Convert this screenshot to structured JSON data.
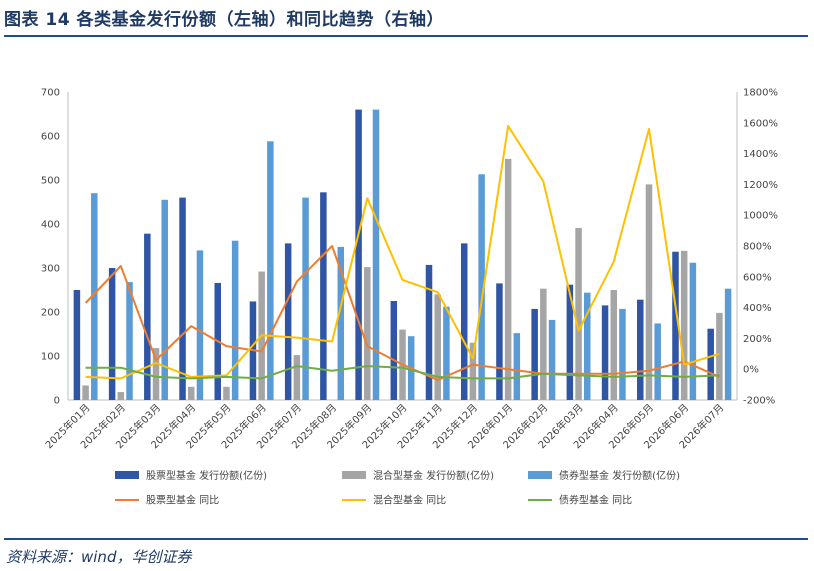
{
  "header": {
    "title": "图表 14   各类基金发行份额（左轴）和同比趋势（右轴）"
  },
  "footer": {
    "source": "资料来源：wind，华创证券"
  },
  "chart_data": {
    "type": "bar",
    "categories": [
      "2025年01月",
      "2025年02月",
      "2025年03月",
      "2025年04月",
      "2025年05月",
      "2025年06月",
      "2025年07月",
      "2025年08月",
      "2025年09月",
      "2025年10月",
      "2025年11月",
      "2025年12月",
      "2026年01月",
      "2026年02月",
      "2026年03月",
      "2026年04月",
      "2026年05月",
      "2026年06月",
      "2026年07月"
    ],
    "left_axis": {
      "ylim": [
        0,
        700
      ],
      "ticks": [
        "0",
        "100",
        "200",
        "300",
        "400",
        "500",
        "600",
        "700"
      ]
    },
    "right_axis": {
      "ylim": [
        -200,
        1800
      ],
      "ticks": [
        "-200%",
        "0%",
        "200%",
        "400%",
        "600%",
        "800%",
        "1000%",
        "1200%",
        "1400%",
        "1600%",
        "1800%"
      ]
    },
    "bar_series": [
      {
        "name": "股票型基金 发行份额(亿份)",
        "color": "#2f55a4",
        "values": [
          250,
          300,
          378,
          460,
          266,
          224,
          356,
          472,
          660,
          225,
          307,
          356,
          265,
          207,
          262,
          215,
          228,
          337,
          162
        ]
      },
      {
        "name": "混合型基金 发行份额(亿份)",
        "color": "#a5a5a5",
        "values": [
          33,
          18,
          118,
          30,
          30,
          292,
          102,
          0,
          302,
          160,
          240,
          130,
          548,
          253,
          391,
          250,
          490,
          339,
          198
        ]
      },
      {
        "name": "债券型基金 发行份额(亿份)",
        "color": "#5b9bd5",
        "values": [
          470,
          268,
          455,
          340,
          362,
          588,
          460,
          348,
          660,
          145,
          212,
          513,
          152,
          182,
          244,
          207,
          174,
          312,
          253
        ]
      }
    ],
    "line_series": [
      {
        "name": "股票型基金 同比",
        "color": "#ed7d31",
        "values": [
          430,
          670,
          60,
          280,
          150,
          115,
          570,
          800,
          150,
          30,
          -70,
          30,
          0,
          -30,
          -30,
          -30,
          -10,
          50,
          -50
        ]
      },
      {
        "name": "混合型基金 同比",
        "color": "#ffc000",
        "values": [
          -50,
          -60,
          40,
          -50,
          -40,
          220,
          205,
          180,
          1110,
          580,
          500,
          70,
          1580,
          1220,
          250,
          700,
          1560,
          30,
          100
        ]
      },
      {
        "name": "债券型基金 同比",
        "color": "#70ad47",
        "values": [
          10,
          10,
          -50,
          -60,
          -50,
          -60,
          20,
          -10,
          20,
          10,
          -50,
          -60,
          -60,
          -30,
          -40,
          -50,
          -40,
          -50,
          -40
        ]
      }
    ],
    "legend_position": "bottom",
    "grid": false
  }
}
